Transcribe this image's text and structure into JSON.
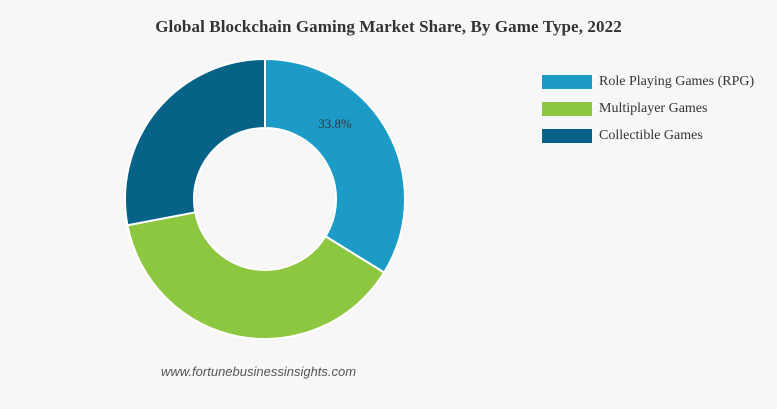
{
  "chart_data": {
    "type": "pie",
    "donut": true,
    "title": "Global Blockchain Gaming Market Share, By Game Type, 2022",
    "categories": [
      "Role Playing Games (RPG)",
      "Multiplayer Games",
      "Collectible Games"
    ],
    "values": [
      33.8,
      38.2,
      28.0
    ],
    "colors": [
      "#1b9bc6",
      "#8dc63f",
      "#066286"
    ],
    "data_labels": [
      "33.8%",
      "",
      ""
    ],
    "legend": "right",
    "start_angle_deg": 0,
    "direction": "clockwise"
  },
  "source": "www.fortunebusinessinsights.com"
}
